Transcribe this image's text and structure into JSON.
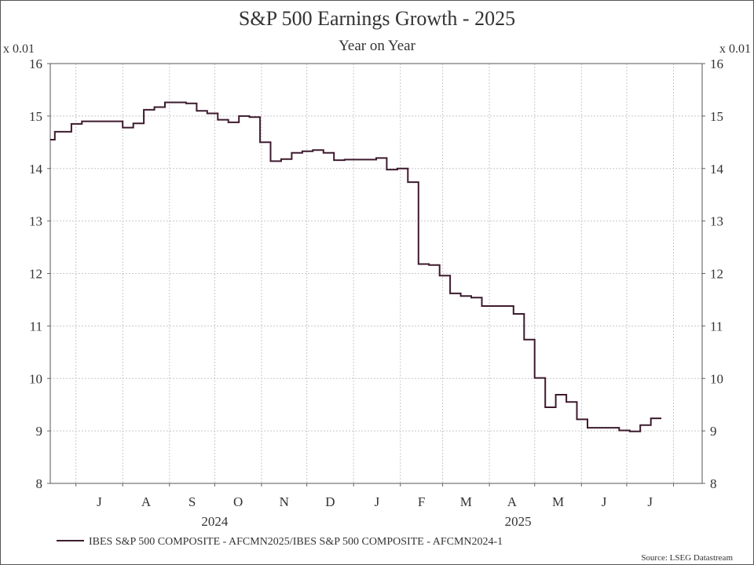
{
  "chart_data": {
    "type": "line",
    "title": "S&P 500 Earnings Growth - 2025",
    "subtitle": "Year on Year",
    "y_unit_left": "x 0.01",
    "y_unit_right": "x 0.01",
    "ylim": [
      8,
      16
    ],
    "yticks": [
      "8",
      "9",
      "10",
      "11",
      "12",
      "13",
      "14",
      "15",
      "16"
    ],
    "x_month_labels": [
      "J",
      "A",
      "S",
      "O",
      "N",
      "D",
      "J",
      "F",
      "M",
      "A",
      "M",
      "J",
      "J"
    ],
    "x_year_labels": [
      "2024",
      "2025"
    ],
    "grid": true,
    "step": true,
    "color": "#3d1a2e",
    "legend_position": "bottom-left",
    "series": [
      {
        "name": "IBES S&P 500 COMPOSITE - AFCMN2025/IBES S&P 500 COMPOSITE - AFCMN2024-1",
        "points": [
          [
            "2024-06-14",
            14.55
          ],
          [
            "2024-06-17",
            14.7
          ],
          [
            "2024-06-28",
            14.85
          ],
          [
            "2024-07-05",
            14.9
          ],
          [
            "2024-07-19",
            14.9
          ],
          [
            "2024-08-01",
            14.78
          ],
          [
            "2024-08-08",
            14.86
          ],
          [
            "2024-08-15",
            15.12
          ],
          [
            "2024-08-22",
            15.17
          ],
          [
            "2024-08-29",
            15.26
          ],
          [
            "2024-09-12",
            15.24
          ],
          [
            "2024-09-19",
            15.1
          ],
          [
            "2024-09-26",
            15.05
          ],
          [
            "2024-10-03",
            14.93
          ],
          [
            "2024-10-10",
            14.88
          ],
          [
            "2024-10-17",
            15.0
          ],
          [
            "2024-10-24",
            14.98
          ],
          [
            "2024-10-31",
            14.5
          ],
          [
            "2024-11-07",
            14.14
          ],
          [
            "2024-11-14",
            14.18
          ],
          [
            "2024-11-21",
            14.3
          ],
          [
            "2024-11-28",
            14.33
          ],
          [
            "2024-12-05",
            14.35
          ],
          [
            "2024-12-12",
            14.3
          ],
          [
            "2024-12-19",
            14.16
          ],
          [
            "2024-12-26",
            14.17
          ],
          [
            "2025-01-09",
            14.17
          ],
          [
            "2025-01-16",
            14.2
          ],
          [
            "2025-01-23",
            13.98
          ],
          [
            "2025-01-30",
            14.0
          ],
          [
            "2025-02-06",
            13.74
          ],
          [
            "2025-02-13",
            12.18
          ],
          [
            "2025-02-20",
            12.16
          ],
          [
            "2025-02-27",
            11.96
          ],
          [
            "2025-03-06",
            11.62
          ],
          [
            "2025-03-13",
            11.57
          ],
          [
            "2025-03-20",
            11.54
          ],
          [
            "2025-03-27",
            11.38
          ],
          [
            "2025-04-10",
            11.38
          ],
          [
            "2025-04-17",
            11.23
          ],
          [
            "2025-04-24",
            10.74
          ],
          [
            "2025-05-01",
            10.01
          ],
          [
            "2025-05-08",
            9.45
          ],
          [
            "2025-05-15",
            9.69
          ],
          [
            "2025-05-22",
            9.55
          ],
          [
            "2025-05-29",
            9.22
          ],
          [
            "2025-06-05",
            9.06
          ],
          [
            "2025-06-19",
            9.06
          ],
          [
            "2025-06-26",
            9.01
          ],
          [
            "2025-07-03",
            8.99
          ],
          [
            "2025-07-10",
            9.11
          ],
          [
            "2025-07-17",
            9.24
          ],
          [
            "2025-07-24",
            9.24
          ]
        ]
      }
    ]
  },
  "source_text": "Source: LSEG Datastream"
}
